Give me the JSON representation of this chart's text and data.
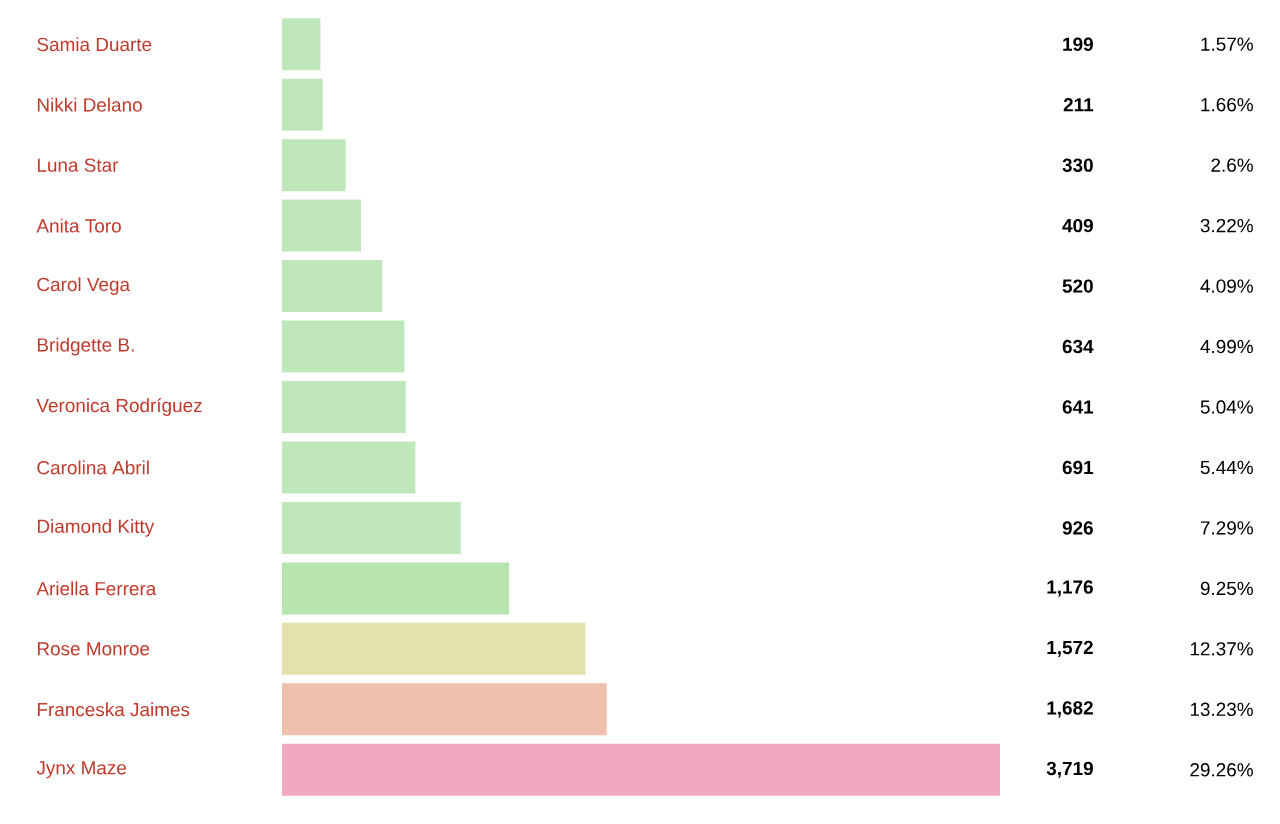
{
  "chart_data": {
    "type": "bar",
    "orientation": "horizontal",
    "categories": [
      "Samia Duarte",
      "Nikki Delano",
      "Luna Star",
      "Anita Toro",
      "Carol Vega",
      "Bridgette B.",
      "Veronica Rodríguez",
      "Carolina Abril",
      "Diamond Kitty",
      "Ariella Ferrera",
      "Rose Monroe",
      "Franceska Jaimes",
      "Jynx Maze"
    ],
    "values": [
      199,
      211,
      330,
      409,
      520,
      634,
      641,
      691,
      926,
      1176,
      1572,
      1682,
      3719
    ],
    "value_labels": [
      "199",
      "211",
      "330",
      "409",
      "520",
      "634",
      "641",
      "691",
      "926",
      "1,176",
      "1,572",
      "1,682",
      "3,719"
    ],
    "annotations": [
      "1.57%",
      "1.66%",
      "2.6%",
      "3.22%",
      "4.09%",
      "4.99%",
      "5.04%",
      "5.44%",
      "7.29%",
      "9.25%",
      "12.37%",
      "13.23%",
      "29.26%"
    ],
    "colors": [
      "#c0e7bb",
      "#c0e7bb",
      "#c0e7bb",
      "#c0e7bb",
      "#c0e7bb",
      "#c0e7bb",
      "#c0e7bb",
      "#c0e7bb",
      "#c0e7bb",
      "#b8e4b0",
      "#e4e1ad",
      "#efc0ad",
      "#f2a9c0"
    ]
  }
}
